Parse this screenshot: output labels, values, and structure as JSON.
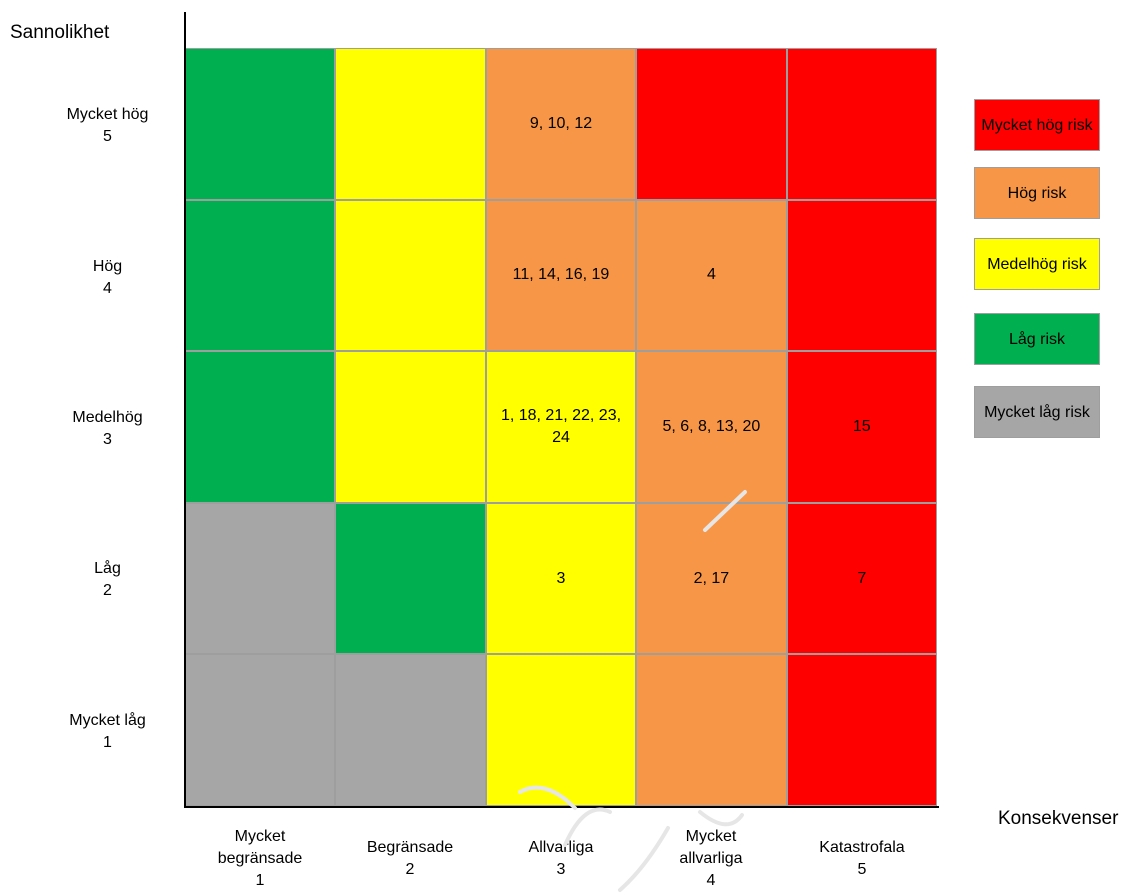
{
  "y_axis_title": "Sannolikhet",
  "x_axis_title": "Konsekvenser",
  "y_ticks": [
    {
      "line1": "Mycket hög",
      "line2": "5"
    },
    {
      "line1": "Hög",
      "line2": "4"
    },
    {
      "line1": "Medelhög",
      "line2": "3"
    },
    {
      "line1": "Låg",
      "line2": "2"
    },
    {
      "line1": "Mycket låg",
      "line2": "1"
    }
  ],
  "x_ticks": [
    {
      "line1": "Mycket",
      "line2": "begränsade",
      "line3": "1"
    },
    {
      "line1": "Begränsade",
      "line2": "2"
    },
    {
      "line1": "Allvarliga",
      "line2": "3"
    },
    {
      "line1": "Mycket",
      "line2": "allvarliga",
      "line3": "4"
    },
    {
      "line1": "Katastrofala",
      "line2": "5"
    }
  ],
  "colors": {
    "very_high": "#ff0000",
    "high": "#f79646",
    "medium": "#ffff00",
    "low": "#00b050",
    "very_low": "#a6a6a6"
  },
  "matrix": [
    [
      {
        "level": "low",
        "text": ""
      },
      {
        "level": "medium",
        "text": ""
      },
      {
        "level": "high",
        "text": "9, 10, 12"
      },
      {
        "level": "very_high",
        "text": ""
      },
      {
        "level": "very_high",
        "text": ""
      }
    ],
    [
      {
        "level": "low",
        "text": ""
      },
      {
        "level": "medium",
        "text": ""
      },
      {
        "level": "high",
        "text": "11, 14, 16, 19"
      },
      {
        "level": "high",
        "text": "4"
      },
      {
        "level": "very_high",
        "text": ""
      }
    ],
    [
      {
        "level": "low",
        "text": ""
      },
      {
        "level": "medium",
        "text": ""
      },
      {
        "level": "medium",
        "text": "1, 18, 21, 22, 23, 24"
      },
      {
        "level": "high",
        "text": "5, 6, 8, 13, 20"
      },
      {
        "level": "very_high",
        "text": "15"
      }
    ],
    [
      {
        "level": "very_low",
        "text": ""
      },
      {
        "level": "low",
        "text": ""
      },
      {
        "level": "medium",
        "text": "3"
      },
      {
        "level": "high",
        "text": "2, 17"
      },
      {
        "level": "very_high",
        "text": "7"
      }
    ],
    [
      {
        "level": "very_low",
        "text": ""
      },
      {
        "level": "very_low",
        "text": ""
      },
      {
        "level": "medium",
        "text": ""
      },
      {
        "level": "high",
        "text": ""
      },
      {
        "level": "very_high",
        "text": ""
      }
    ]
  ],
  "legend": [
    {
      "level": "very_high",
      "label": "Mycket hög risk"
    },
    {
      "level": "high",
      "label": "Hög risk"
    },
    {
      "level": "medium",
      "label": "Medelhög risk"
    },
    {
      "level": "low",
      "label": "Låg risk"
    },
    {
      "level": "very_low",
      "label": "Mycket låg risk"
    }
  ]
}
